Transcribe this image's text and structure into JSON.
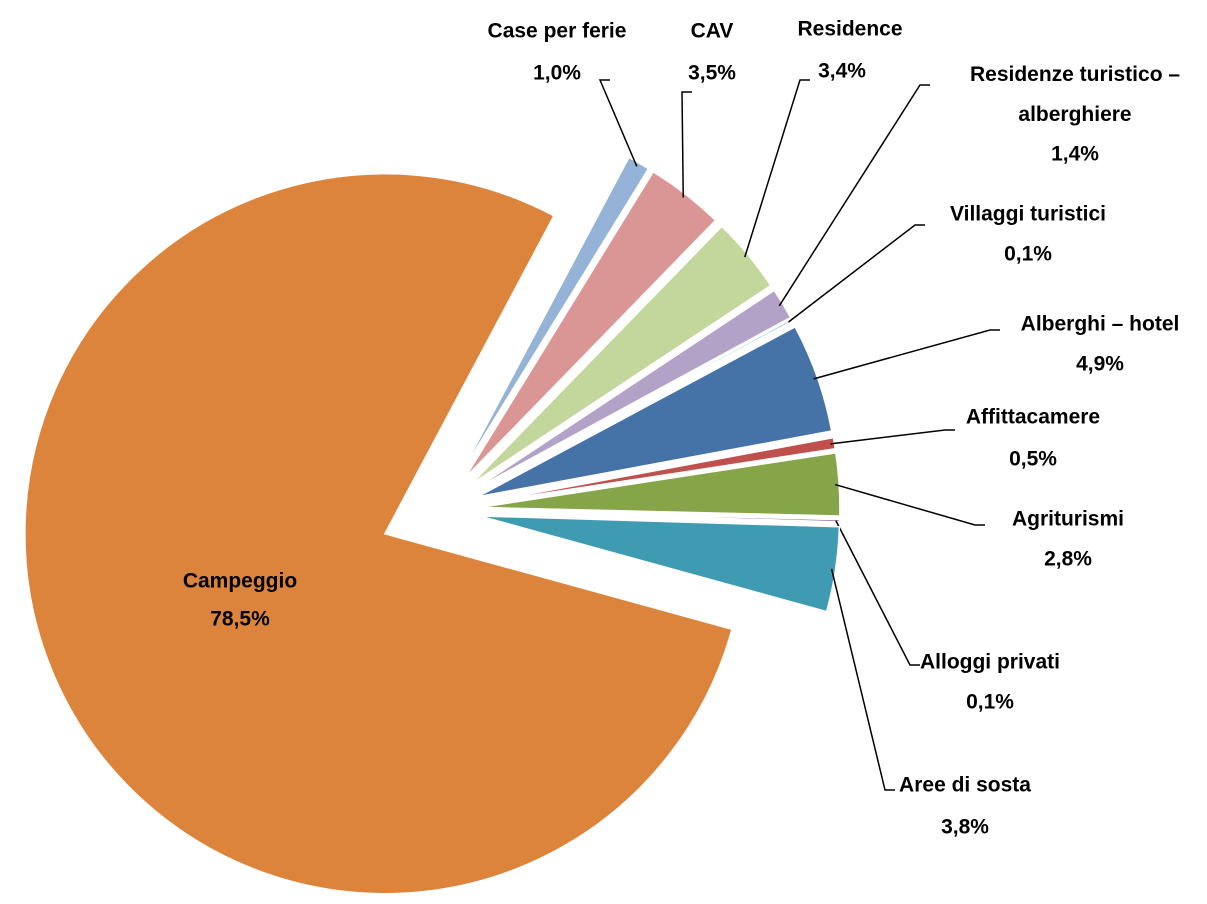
{
  "chart_data": {
    "type": "pie",
    "categories": [
      "Case per ferie",
      "CAV",
      "Residence",
      "Residenze turistico – alberghiere",
      "Villaggi turistici",
      "Alberghi – hotel",
      "Affittacamere",
      "Agriturismi",
      "Alloggi privati",
      "Aree di sosta",
      "Campeggio"
    ],
    "values": [
      1.0,
      3.5,
      3.4,
      1.4,
      0.1,
      4.9,
      0.5,
      2.8,
      0.1,
      3.8,
      78.5
    ],
    "value_labels": [
      "1,0%",
      "3,5%",
      "3,4%",
      "1,4%",
      "0,1%",
      "4,9%",
      "0,5%",
      "2,8%",
      "0,1%",
      "3,8%",
      "78,5%"
    ],
    "colors": [
      "#95b3d7",
      "#d99694",
      "#c3d69b",
      "#b3a2c7",
      "#93cddd",
      "#4572a7",
      "#c0504d",
      "#86a548",
      "#8064a2",
      "#3f9bb2",
      "#dd843c"
    ]
  }
}
